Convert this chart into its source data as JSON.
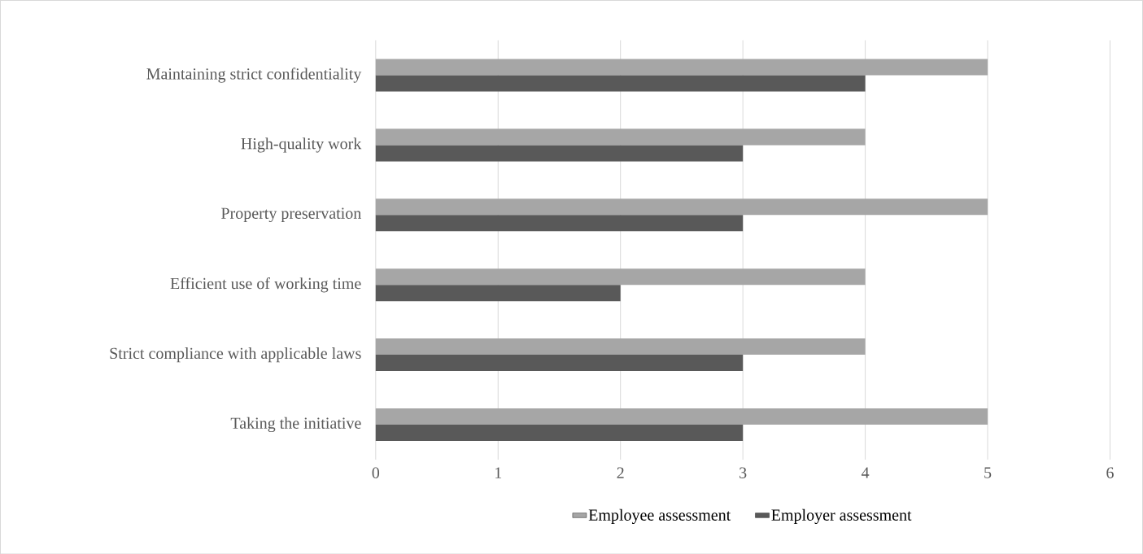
{
  "chart_data": {
    "type": "bar",
    "orientation": "horizontal",
    "categories": [
      "Maintaining strict confidentiality",
      "High-quality work",
      "Property preservation",
      "Efficient use of working time",
      "Strict compliance with applicable laws",
      "Taking the initiative"
    ],
    "series": [
      {
        "name": "Employee assessment",
        "color": "#a6a6a6",
        "values": [
          5,
          4,
          5,
          4,
          4,
          5
        ]
      },
      {
        "name": "Employer assessment",
        "color": "#595959",
        "values": [
          4,
          3,
          3,
          2,
          3,
          3
        ]
      }
    ],
    "xlim": [
      0,
      6
    ],
    "xticks": [
      0,
      1,
      2,
      3,
      4,
      5,
      6
    ],
    "grid": "x",
    "legend": "bottom"
  }
}
